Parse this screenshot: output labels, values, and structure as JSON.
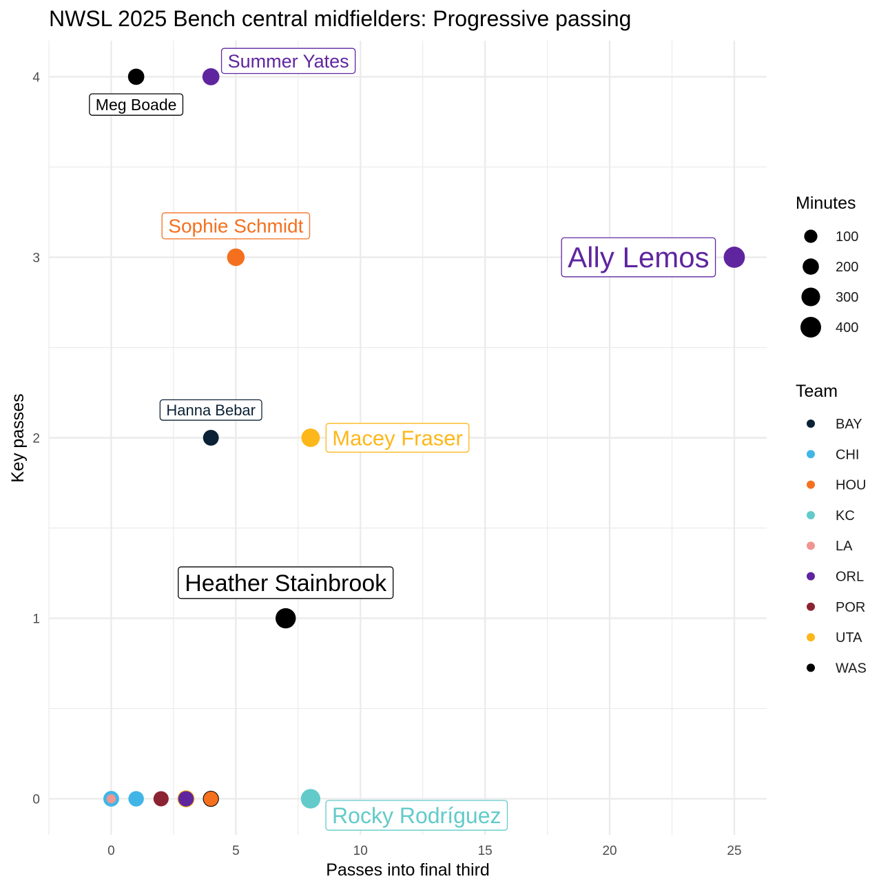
{
  "chart_data": {
    "type": "scatter",
    "title": "NWSL 2025 Bench central midfielders: Progressive passing",
    "xlabel": "Passes into final third",
    "ylabel": "Key passes",
    "xlim": [
      -2.5,
      26.3
    ],
    "ylim": [
      -0.2,
      4.2
    ],
    "x_ticks": [
      0,
      5,
      10,
      15,
      20,
      25
    ],
    "y_ticks": [
      0,
      1,
      2,
      3,
      4
    ],
    "grid": true,
    "legend_size": {
      "title": "Minutes",
      "entries": [
        {
          "label": "100",
          "value": 100
        },
        {
          "label": "200",
          "value": 200
        },
        {
          "label": "300",
          "value": 300
        },
        {
          "label": "400",
          "value": 400
        }
      ]
    },
    "legend_team": {
      "title": "Team",
      "entries": [
        {
          "label": "BAY",
          "color": "#0b2135"
        },
        {
          "label": "CHI",
          "color": "#41b6e6"
        },
        {
          "label": "HOU",
          "color": "#f4701f"
        },
        {
          "label": "KC",
          "color": "#62cbc9"
        },
        {
          "label": "LA",
          "color": "#f09692"
        },
        {
          "label": "ORL",
          "color": "#5f259f"
        },
        {
          "label": "POR",
          "color": "#8b2332"
        },
        {
          "label": "UTA",
          "color": "#fdb71a"
        },
        {
          "label": "WAS",
          "color": "#000000"
        }
      ]
    },
    "points": [
      {
        "x": 25,
        "y": 3,
        "minutes": 430,
        "team": "ORL",
        "name": "Ally Lemos",
        "label": true,
        "label_size": 42,
        "label_pos": "left"
      },
      {
        "x": 7,
        "y": 1,
        "minutes": 380,
        "team": "WAS",
        "name": "Heather Stainbrook",
        "label": true,
        "label_size": 34,
        "label_pos": "above"
      },
      {
        "x": 8,
        "y": 0,
        "minutes": 340,
        "team": "KC",
        "name": "Rocky Rodríguez",
        "label": true,
        "label_size": 32,
        "label_pos": "below-right"
      },
      {
        "x": 8,
        "y": 2,
        "minutes": 290,
        "team": "UTA",
        "name": "Macey Fraser",
        "label": true,
        "label_size": 31,
        "label_pos": "right"
      },
      {
        "x": 5,
        "y": 3,
        "minutes": 250,
        "team": "HOU",
        "name": "Sophie Schmidt",
        "label": true,
        "label_size": 28,
        "label_pos": "above"
      },
      {
        "x": 4,
        "y": 4,
        "minutes": 230,
        "team": "ORL",
        "name": "Summer Yates",
        "label": true,
        "label_size": 27,
        "label_pos": "above-right"
      },
      {
        "x": 1,
        "y": 4,
        "minutes": 200,
        "team": "WAS",
        "name": "Meg Boade",
        "label": true,
        "label_size": 23,
        "label_pos": "below"
      },
      {
        "x": 4,
        "y": 2,
        "minutes": 180,
        "team": "BAY",
        "name": "Hanna Bebar",
        "label": true,
        "label_size": 22,
        "label_pos": "above"
      },
      {
        "x": 0,
        "y": 0,
        "minutes": 180,
        "team": "CHI",
        "name": "",
        "label": false
      },
      {
        "x": 0,
        "y": 0,
        "minutes": 20,
        "team": "LA",
        "name": "",
        "label": false
      },
      {
        "x": 1,
        "y": 0,
        "minutes": 170,
        "team": "CHI",
        "name": "",
        "label": false
      },
      {
        "x": 2,
        "y": 0,
        "minutes": 160,
        "team": "POR",
        "name": "",
        "label": false
      },
      {
        "x": 3,
        "y": 0,
        "minutes": 230,
        "team": "UTA",
        "name": "",
        "label": false
      },
      {
        "x": 3,
        "y": 0,
        "minutes": 170,
        "team": "ORL",
        "name": "",
        "label": false
      },
      {
        "x": 4,
        "y": 0,
        "minutes": 190,
        "team": "WAS",
        "name": "",
        "label": false
      },
      {
        "x": 4,
        "y": 0,
        "minutes": 140,
        "team": "HOU",
        "name": "",
        "label": false
      }
    ]
  }
}
